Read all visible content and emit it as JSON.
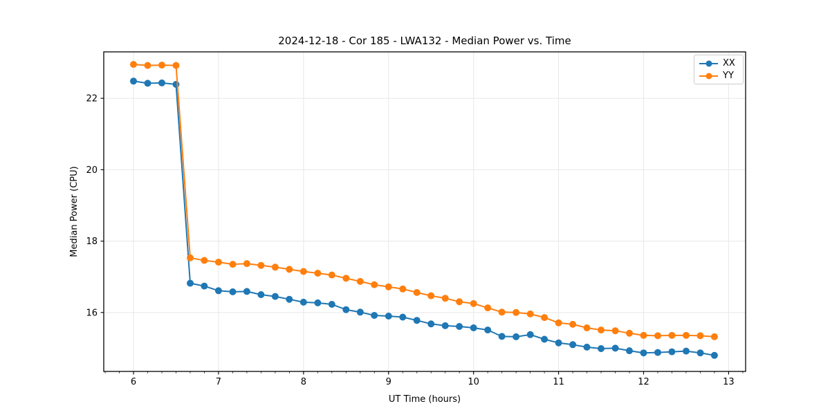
{
  "chart_data": {
    "type": "line",
    "title": "2024-12-18 - Cor 185 - LWA132 - Median Power vs. Time",
    "xlabel": "UT Time (hours)",
    "ylabel": "Median Power (CPU)",
    "xlim": [
      5.65,
      13.2
    ],
    "ylim": [
      14.35,
      23.3
    ],
    "x_major_ticks": [
      6,
      7,
      8,
      9,
      10,
      11,
      12,
      13
    ],
    "x_minor_tick_step": 0.1666667,
    "y_major_ticks": [
      16,
      18,
      20,
      22
    ],
    "grid": "major gridlines both axes, light gray",
    "legend_position": "upper right",
    "marker": "circle",
    "colors": {
      "xx": "#1f77b4",
      "yy": "#ff7f0e",
      "grid": "#e7e7e7",
      "spine": "#000000",
      "text": "#000000",
      "background": "#ffffff"
    },
    "x": [
      6.0,
      6.167,
      6.333,
      6.5,
      6.667,
      6.833,
      7.0,
      7.167,
      7.333,
      7.5,
      7.667,
      7.833,
      8.0,
      8.167,
      8.333,
      8.5,
      8.667,
      8.833,
      9.0,
      9.167,
      9.333,
      9.5,
      9.667,
      9.833,
      10.0,
      10.167,
      10.333,
      10.5,
      10.667,
      10.833,
      11.0,
      11.167,
      11.333,
      11.5,
      11.667,
      11.833,
      12.0,
      12.167,
      12.333,
      12.5,
      12.667,
      12.833
    ],
    "series": [
      {
        "name": "XX",
        "color": "#1f77b4",
        "values": [
          22.48,
          22.42,
          22.43,
          22.39,
          16.82,
          16.74,
          16.61,
          16.58,
          16.59,
          16.5,
          16.45,
          16.37,
          16.29,
          16.27,
          16.23,
          16.08,
          16.01,
          15.92,
          15.9,
          15.87,
          15.78,
          15.68,
          15.63,
          15.61,
          15.57,
          15.51,
          15.33,
          15.32,
          15.38,
          15.25,
          15.15,
          15.1,
          15.03,
          14.99,
          15.0,
          14.93,
          14.87,
          14.88,
          14.9,
          14.92,
          14.87,
          14.8
        ]
      },
      {
        "name": "YY",
        "color": "#ff7f0e",
        "values": [
          22.95,
          22.92,
          22.93,
          22.92,
          17.53,
          17.46,
          17.41,
          17.35,
          17.37,
          17.32,
          17.27,
          17.21,
          17.15,
          17.1,
          17.05,
          16.96,
          16.87,
          16.78,
          16.72,
          16.66,
          16.56,
          16.47,
          16.4,
          16.3,
          16.25,
          16.13,
          16.01,
          16.0,
          15.96,
          15.86,
          15.71,
          15.67,
          15.57,
          15.51,
          15.49,
          15.42,
          15.36,
          15.35,
          15.36,
          15.36,
          15.35,
          15.32
        ]
      }
    ]
  }
}
